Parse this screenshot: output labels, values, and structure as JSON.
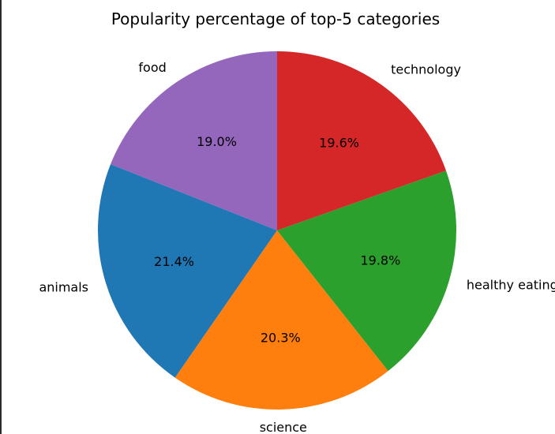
{
  "chart_data": {
    "type": "pie",
    "title": "Popularity percentage of top-5 categories",
    "start_angle": 90,
    "direction": "counterclockwise",
    "legend": "none",
    "slices": [
      {
        "label": "food",
        "value": 19.0,
        "pct_label": "19.0%",
        "color": "#9467bd"
      },
      {
        "label": "animals",
        "value": 21.4,
        "pct_label": "21.4%",
        "color": "#1f77b4"
      },
      {
        "label": "science",
        "value": 20.3,
        "pct_label": "20.3%",
        "color": "#ff7f0e"
      },
      {
        "label": "healthy eating",
        "value": 19.8,
        "pct_label": "19.8%",
        "color": "#2ca02c"
      },
      {
        "label": "technology",
        "value": 19.6,
        "pct_label": "19.6%",
        "color": "#d62728"
      }
    ]
  }
}
